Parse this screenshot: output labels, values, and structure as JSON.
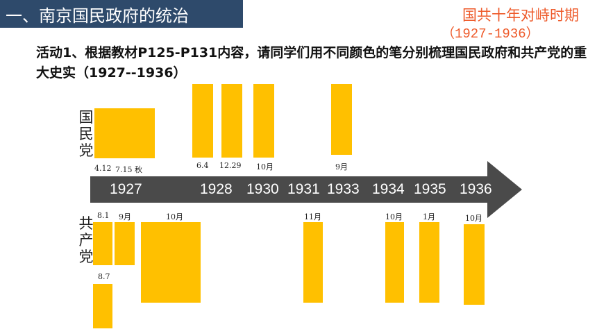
{
  "header": {
    "section_title": "一、南京国民政府的统治",
    "period_title": "国共十年对峙时期",
    "period_range": "（1927-1936）"
  },
  "instruction": "活动1、根据教材P125-P131内容，请同学们用不同颜色的笔分别梳理国民政府和共产党的重大史实（1927--1936）",
  "parties": {
    "kmt": "国民党",
    "cpc": "共产党"
  },
  "timeline": {
    "years": [
      "1927",
      "1928",
      "1930",
      "1931",
      "1933",
      "1934",
      "1935",
      "1936"
    ],
    "kmt_labels": [
      "4.12",
      "7.15 秋",
      "6.4",
      "12.29",
      "10月",
      "9月"
    ],
    "cpc_labels": [
      "8.1",
      "9月",
      "10月",
      "11月",
      "10月",
      "1月",
      "10月",
      "8.7"
    ]
  },
  "colors": {
    "title_bar": "#2e4a6b",
    "accent": "#ee5a2a",
    "box": "#ffc000",
    "arrow": "#4a4a4a"
  }
}
